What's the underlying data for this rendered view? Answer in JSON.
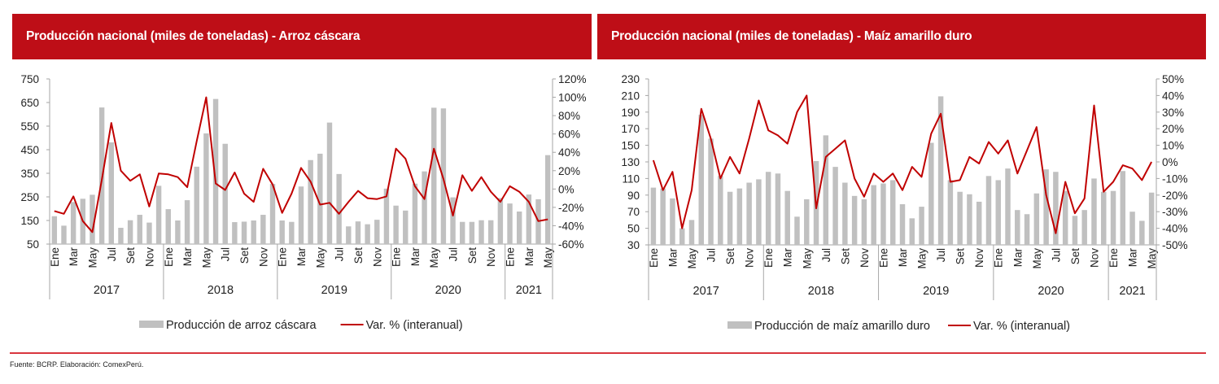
{
  "footer": {
    "source": "Fuente: BCRP. Elaboración:  ComexPerú."
  },
  "colors": {
    "header_bg": "#BE0E17",
    "bar": "#C0C0C0",
    "line": "#C00000",
    "axis": "#A6A6A6",
    "footer_line": "#D9363E"
  },
  "chart_data": [
    {
      "type": "bar+line",
      "title": "Producción nacional (miles de toneladas) - Arroz cáscara",
      "x_labels": [
        "Ene",
        "Mar",
        "May",
        "Jul",
        "Set",
        "Nov",
        "Ene",
        "Mar",
        "May",
        "Jul",
        "Set",
        "Nov",
        "Ene",
        "Mar",
        "May",
        "Jul",
        "Set",
        "Nov",
        "Ene",
        "Mar",
        "May",
        "Jul",
        "Set",
        "Nov",
        "Ene",
        "Mar",
        "May"
      ],
      "months_all": 53,
      "years": [
        {
          "label": "2017",
          "months": 12
        },
        {
          "label": "2018",
          "months": 12
        },
        {
          "label": "2019",
          "months": 12
        },
        {
          "label": "2020",
          "months": 12
        },
        {
          "label": "2021",
          "months": 5
        }
      ],
      "y_left": {
        "min": 50,
        "max": 750,
        "ticks": [
          "750",
          "650",
          "550",
          "450",
          "350",
          "250",
          "150",
          "50"
        ],
        "tick_values": [
          750,
          650,
          550,
          450,
          350,
          250,
          150,
          50
        ]
      },
      "y_right": {
        "min": -60,
        "max": 120,
        "ticks": [
          "120%",
          "100%",
          "80%",
          "60%",
          "40%",
          "20%",
          "0%",
          "-20%",
          "-40%",
          "-60%"
        ],
        "tick_values": [
          120,
          100,
          80,
          60,
          40,
          20,
          0,
          -20,
          -40,
          -60
        ]
      },
      "series": [
        {
          "name": "Producción de arroz cáscara",
          "kind": "bar",
          "axis": "left",
          "values": [
            168,
            128,
            228,
            242,
            259,
            629,
            481,
            119,
            151,
            174,
            141,
            297,
            198,
            150,
            236,
            378,
            519,
            665,
            475,
            143,
            145,
            150,
            174,
            305,
            150,
            144,
            294,
            406,
            433,
            565,
            347,
            125,
            146,
            134,
            153,
            285,
            213,
            192,
            306,
            358,
            628,
            625,
            248,
            144,
            144,
            151,
            151,
            245,
            222,
            188,
            260,
            240,
            427
          ]
        },
        {
          "name": "Var. % (interanual)",
          "kind": "line",
          "axis": "right",
          "values": [
            -24,
            -27,
            -8,
            -35,
            -47,
            10,
            72,
            20,
            9,
            16,
            -19,
            17,
            16,
            13,
            2,
            52,
            100,
            6,
            -1,
            18,
            -5,
            -14,
            22,
            5,
            -26,
            -5,
            23,
            8,
            -17,
            -15,
            -27,
            -14,
            -2,
            -10,
            -11,
            -8,
            44,
            33,
            3,
            -11,
            44,
            11,
            -29,
            15,
            -2,
            13,
            -3,
            -14,
            3,
            -3,
            -14,
            -35,
            -33
          ]
        }
      ],
      "legend": [
        {
          "label": "Producción de arroz cáscara",
          "kind": "bar"
        },
        {
          "label": "Var. % (interanual)",
          "kind": "line"
        }
      ],
      "legend_position": "bottom"
    },
    {
      "type": "bar+line",
      "title": "Producción nacional (miles de toneladas) - Maíz amarillo  duro",
      "x_labels": [
        "Ene",
        "Mar",
        "May",
        "Jul",
        "Set",
        "Nov",
        "Ene",
        "Mar",
        "May",
        "Jul",
        "Set",
        "Nov",
        "Ene",
        "Mar",
        "May",
        "Jul",
        "Set",
        "Nov",
        "Ene",
        "Mar",
        "May",
        "Jul",
        "Set",
        "Nov",
        "Ene",
        "Mar",
        "May"
      ],
      "months_all": 53,
      "years": [
        {
          "label": "2017",
          "months": 12
        },
        {
          "label": "2018",
          "months": 12
        },
        {
          "label": "2019",
          "months": 12
        },
        {
          "label": "2020",
          "months": 12
        },
        {
          "label": "2021",
          "months": 5
        }
      ],
      "y_left": {
        "min": 30,
        "max": 230,
        "ticks": [
          "230",
          "210",
          "190",
          "170",
          "150",
          "130",
          "110",
          "90",
          "70",
          "50",
          "30"
        ],
        "tick_values": [
          230,
          210,
          190,
          170,
          150,
          130,
          110,
          90,
          70,
          50,
          30
        ]
      },
      "y_right": {
        "min": -50,
        "max": 50,
        "ticks": [
          "50%",
          "40%",
          "30%",
          "20%",
          "10%",
          "0%",
          "-10%",
          "-20%",
          "-30%",
          "-40%",
          "-50%"
        ],
        "tick_values": [
          50,
          40,
          30,
          20,
          10,
          0,
          -10,
          -20,
          -30,
          -40,
          -50
        ]
      },
      "series": [
        {
          "name": "Producción de maíz amarillo duro",
          "kind": "bar",
          "axis": "left",
          "values": [
            99,
            98,
            86,
            50,
            60,
            187,
            158,
            113,
            94,
            98,
            105,
            109,
            118,
            116,
            95,
            64,
            85,
            131,
            162,
            124,
            105,
            89,
            85,
            102,
            104,
            108,
            79,
            62,
            76,
            153,
            209,
            108,
            94,
            91,
            82,
            113,
            108,
            122,
            72,
            67,
            92,
            121,
            118,
            95,
            65,
            72,
            110,
            94,
            95,
            119,
            70,
            59,
            93
          ]
        },
        {
          "name": "Var. % (interanual)",
          "kind": "line",
          "axis": "right",
          "values": [
            1,
            -17,
            -6,
            -40,
            -17,
            32,
            14,
            -10,
            3,
            -7,
            14,
            37,
            19,
            16,
            11,
            30,
            40,
            -28,
            3,
            8,
            13,
            -10,
            -21,
            -7,
            -12,
            -7,
            -17,
            -3,
            -9,
            17,
            29,
            -12,
            -11,
            3,
            -1,
            12,
            5,
            13,
            -7,
            7,
            21,
            -20,
            -43,
            -12,
            -31,
            -22,
            34,
            -18,
            -12,
            -2,
            -4,
            -11,
            0
          ]
        }
      ],
      "legend": [
        {
          "label": "Producción de maíz amarillo duro",
          "kind": "bar"
        },
        {
          "label": "Var. % (interanual)",
          "kind": "line"
        }
      ],
      "legend_position": "bottom"
    }
  ]
}
